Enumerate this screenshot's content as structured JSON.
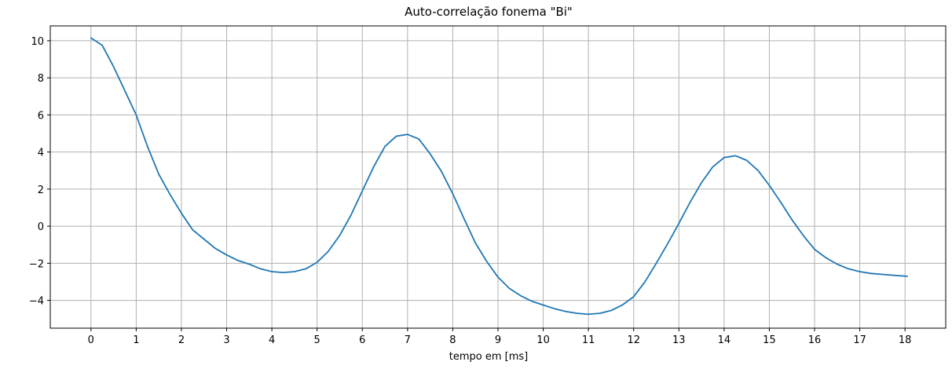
{
  "chart_data": {
    "type": "line",
    "title": "Auto-correlação fonema \"Bi\"",
    "xlabel": "tempo em [ms]",
    "ylabel": "",
    "xlim": [
      -0.9,
      18.9
    ],
    "ylim": [
      -5.5,
      10.8
    ],
    "xticks": [
      0,
      1,
      2,
      3,
      4,
      5,
      6,
      7,
      8,
      9,
      10,
      11,
      12,
      13,
      14,
      15,
      16,
      17,
      18
    ],
    "yticks": [
      -4,
      -2,
      0,
      2,
      4,
      6,
      8,
      10
    ],
    "grid": true,
    "legend": "none",
    "series": [
      {
        "color": "#1f77b4",
        "x": [
          0,
          0.25,
          0.5,
          0.75,
          1,
          1.25,
          1.5,
          1.75,
          2,
          2.25,
          2.5,
          2.75,
          3,
          3.25,
          3.5,
          3.75,
          4,
          4.25,
          4.5,
          4.75,
          5,
          5.25,
          5.5,
          5.75,
          6,
          6.25,
          6.5,
          6.75,
          7,
          7.25,
          7.5,
          7.75,
          8,
          8.25,
          8.5,
          8.75,
          9,
          9.25,
          9.5,
          9.75,
          10,
          10.25,
          10.5,
          10.75,
          11,
          11.25,
          11.5,
          11.75,
          12,
          12.25,
          12.5,
          12.75,
          13,
          13.25,
          13.5,
          13.75,
          14,
          14.25,
          14.5,
          14.75,
          15,
          15.25,
          15.5,
          15.75,
          16,
          16.25,
          16.5,
          16.75,
          17,
          17.25,
          17.5,
          17.75,
          18.05
        ],
        "y": [
          10.15,
          9.75,
          8.6,
          7.3,
          6.0,
          4.3,
          2.8,
          1.7,
          0.7,
          -0.2,
          -0.7,
          -1.2,
          -1.55,
          -1.85,
          -2.05,
          -2.3,
          -2.45,
          -2.5,
          -2.45,
          -2.3,
          -1.95,
          -1.35,
          -0.5,
          0.6,
          1.9,
          3.2,
          4.3,
          4.85,
          4.95,
          4.7,
          3.9,
          2.95,
          1.75,
          0.4,
          -0.9,
          -1.9,
          -2.75,
          -3.35,
          -3.75,
          -4.05,
          -4.25,
          -4.45,
          -4.6,
          -4.7,
          -4.75,
          -4.7,
          -4.55,
          -4.25,
          -3.8,
          -3.0,
          -2.0,
          -0.95,
          0.15,
          1.3,
          2.35,
          3.2,
          3.7,
          3.8,
          3.55,
          3.0,
          2.2,
          1.3,
          0.35,
          -0.5,
          -1.25,
          -1.7,
          -2.05,
          -2.3,
          -2.45,
          -2.55,
          -2.6,
          -2.65,
          -2.7
        ]
      }
    ]
  }
}
